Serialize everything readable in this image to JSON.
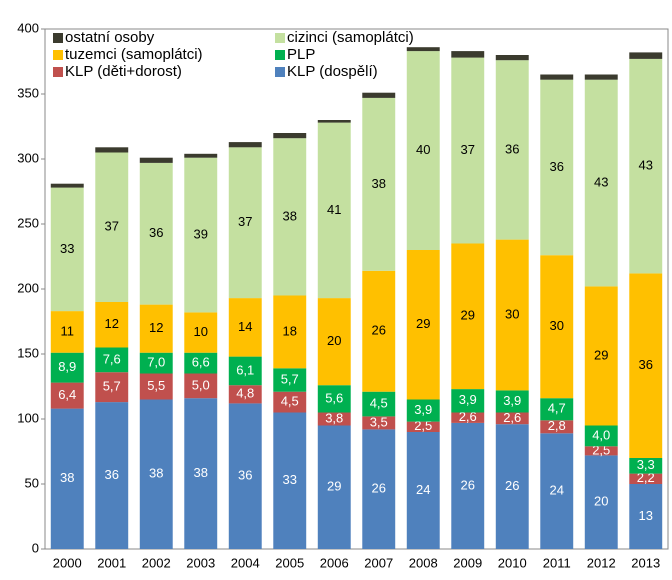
{
  "chart_data": {
    "type": "stacked-bar",
    "categories": [
      "2000",
      "2001",
      "2002",
      "2003",
      "2004",
      "2005",
      "2006",
      "2007",
      "2008",
      "2009",
      "2010",
      "2011",
      "2012",
      "2013"
    ],
    "ylim": [
      0,
      400
    ],
    "yticks": [
      0,
      50,
      100,
      150,
      200,
      250,
      300,
      350,
      400
    ],
    "grid": false,
    "legend": "top-left",
    "series": [
      {
        "name": "KLP (dospělí)",
        "color": "#4f81bd",
        "label_color": "#ffffff",
        "values": [
          108,
          113,
          115,
          116,
          112,
          105,
          95,
          92,
          90,
          97,
          96,
          89,
          72,
          50
        ],
        "labels": [
          "38",
          "36",
          "38",
          "38",
          "36",
          "33",
          "29",
          "26",
          "24",
          "26",
          "26",
          "24",
          "20",
          "13"
        ]
      },
      {
        "name": "KLP (děti+dorost)",
        "color": "#c0504d",
        "label_color": "#ffffff",
        "values": [
          20,
          23,
          20,
          19,
          14,
          16,
          10,
          10,
          8,
          8,
          9,
          10,
          7,
          8
        ],
        "labels": [
          "6,4",
          "5,7",
          "5,5",
          "5,0",
          "4,8",
          "4,5",
          "3,8",
          "3,5",
          "2,5",
          "2,6",
          "2,6",
          "2,8",
          "2,5",
          "2,2"
        ]
      },
      {
        "name": "PLP",
        "color": "#00b050",
        "label_color": "#ffffff",
        "values": [
          23,
          19,
          16,
          16,
          22,
          18,
          21,
          19,
          17,
          18,
          17,
          17,
          16,
          12
        ],
        "labels": [
          "8,9",
          "7,6",
          "7,0",
          "6,6",
          "6,1",
          "5,7",
          "5,6",
          "4,5",
          "3,9",
          "3,9",
          "3,9",
          "4,7",
          "4,0",
          "3,3"
        ]
      },
      {
        "name": "tuzemci (samoplátci)",
        "color": "#ffc000",
        "label_color": "#000000",
        "values": [
          32,
          35,
          37,
          31,
          45,
          56,
          67,
          93,
          115,
          112,
          116,
          110,
          107,
          142
        ],
        "labels": [
          "11",
          "12",
          "12",
          "10",
          "14",
          "18",
          "20",
          "26",
          "29",
          "29",
          "30",
          "30",
          "29",
          "36"
        ]
      },
      {
        "name": "cizinci (samoplátci)",
        "color": "#c4e0a0",
        "label_color": "#000000",
        "values": [
          95,
          115,
          109,
          119,
          116,
          121,
          135,
          133,
          153,
          143,
          138,
          135,
          159,
          165
        ],
        "labels": [
          "33",
          "37",
          "36",
          "39",
          "37",
          "38",
          "41",
          "38",
          "40",
          "37",
          "36",
          "36",
          "43",
          "43"
        ]
      },
      {
        "name": "ostatní osoby",
        "color": "#3b3b2e",
        "values": [
          3,
          4,
          4,
          3,
          4,
          4,
          2,
          4,
          3,
          5,
          4,
          4,
          4,
          5
        ]
      }
    ]
  }
}
